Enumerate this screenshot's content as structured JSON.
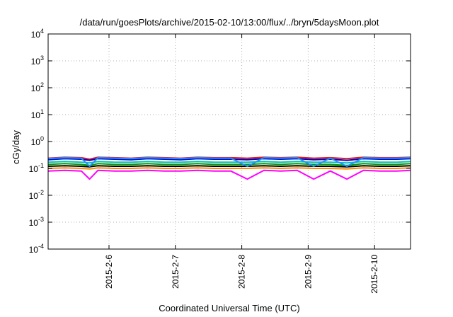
{
  "chart_data": {
    "type": "line",
    "title": "/data/run/goesPlots/archive/2015-02-10/13:00/flux/../bryn/5daysMoon.plot",
    "xlabel": "Coordinated Universal Time (UTC)",
    "ylabel": "cGy/day",
    "yscale": "log",
    "ylim": [
      0.0001,
      10000
    ],
    "xlim": [
      "2015-02-05T02:00",
      "2015-02-10T13:00"
    ],
    "grid": true,
    "y_ticks": [
      {
        "base": "10",
        "exp": "-4",
        "value": 0.0001
      },
      {
        "base": "10",
        "exp": "-3",
        "value": 0.001
      },
      {
        "base": "10",
        "exp": "-2",
        "value": 0.01
      },
      {
        "base": "10",
        "exp": "-1",
        "value": 0.1
      },
      {
        "base": "10",
        "exp": "0",
        "value": 1
      },
      {
        "base": "10",
        "exp": "1",
        "value": 10
      },
      {
        "base": "10",
        "exp": "2",
        "value": 100
      },
      {
        "base": "10",
        "exp": "3",
        "value": 1000
      },
      {
        "base": "10",
        "exp": "4",
        "value": 10000
      }
    ],
    "x_ticks": [
      {
        "label": "2015-2-6",
        "value": "2015-02-06T00:00"
      },
      {
        "label": "2015-2-7",
        "value": "2015-02-07T00:00"
      },
      {
        "label": "2015-2-8",
        "value": "2015-02-08T00:00"
      },
      {
        "label": "2015-2-9",
        "value": "2015-02-09T00:00"
      },
      {
        "label": "2015-2-10",
        "value": "2015-02-10T00:00"
      }
    ],
    "x": [
      "2015-02-05T02:00",
      "2015-02-05T08:00",
      "2015-02-05T14:00",
      "2015-02-05T17:00",
      "2015-02-05T20:00",
      "2015-02-06T02:00",
      "2015-02-06T08:00",
      "2015-02-06T14:00",
      "2015-02-06T20:00",
      "2015-02-07T02:00",
      "2015-02-07T08:00",
      "2015-02-07T14:00",
      "2015-02-07T20:00",
      "2015-02-08T02:00",
      "2015-02-08T08:00",
      "2015-02-08T14:00",
      "2015-02-08T20:00",
      "2015-02-09T02:00",
      "2015-02-09T08:00",
      "2015-02-09T14:00",
      "2015-02-09T20:00",
      "2015-02-10T02:00",
      "2015-02-10T08:00",
      "2015-02-10T13:00"
    ],
    "series": [
      {
        "color": "#e41a1c",
        "values": [
          0.24,
          0.26,
          0.25,
          0.22,
          0.26,
          0.25,
          0.24,
          0.26,
          0.25,
          0.24,
          0.26,
          0.25,
          0.25,
          0.24,
          0.26,
          0.25,
          0.26,
          0.24,
          0.25,
          0.23,
          0.26,
          0.25,
          0.25,
          0.26
        ]
      },
      {
        "color": "#0000cc",
        "values": [
          0.21,
          0.23,
          0.22,
          0.2,
          0.23,
          0.22,
          0.21,
          0.23,
          0.22,
          0.21,
          0.23,
          0.22,
          0.22,
          0.21,
          0.23,
          0.22,
          0.23,
          0.21,
          0.22,
          0.2,
          0.23,
          0.22,
          0.22,
          0.23
        ]
      },
      {
        "color": "#00bfbf",
        "values": [
          0.17,
          0.18,
          0.17,
          0.16,
          0.18,
          0.17,
          0.17,
          0.18,
          0.17,
          0.17,
          0.18,
          0.17,
          0.17,
          0.17,
          0.18,
          0.17,
          0.18,
          0.17,
          0.17,
          0.16,
          0.18,
          0.17,
          0.17,
          0.18
        ]
      },
      {
        "color": "#00a000",
        "values": [
          0.14,
          0.15,
          0.14,
          0.13,
          0.15,
          0.14,
          0.14,
          0.15,
          0.14,
          0.14,
          0.15,
          0.14,
          0.14,
          0.14,
          0.15,
          0.14,
          0.15,
          0.14,
          0.14,
          0.13,
          0.15,
          0.14,
          0.14,
          0.15
        ]
      },
      {
        "color": "#000000",
        "values": [
          0.12,
          0.125,
          0.12,
          0.115,
          0.125,
          0.12,
          0.12,
          0.125,
          0.12,
          0.12,
          0.125,
          0.12,
          0.12,
          0.12,
          0.125,
          0.12,
          0.125,
          0.12,
          0.12,
          0.115,
          0.125,
          0.12,
          0.12,
          0.125
        ]
      },
      {
        "color": "#ff8c00",
        "values": [
          0.1,
          0.105,
          0.1,
          0.095,
          0.105,
          0.1,
          0.1,
          0.105,
          0.1,
          0.1,
          0.105,
          0.1,
          0.1,
          0.1,
          0.105,
          0.1,
          0.105,
          0.1,
          0.1,
          0.095,
          0.105,
          0.1,
          0.1,
          0.105
        ]
      },
      {
        "color": "#ff00ff",
        "values": [
          0.08,
          0.085,
          0.08,
          0.04,
          0.085,
          0.08,
          0.08,
          0.085,
          0.08,
          0.08,
          0.085,
          0.08,
          0.08,
          0.04,
          0.085,
          0.08,
          0.085,
          0.04,
          0.08,
          0.04,
          0.085,
          0.08,
          0.08,
          0.085
        ]
      },
      {
        "color": "#1e90ff",
        "values": [
          0.23,
          0.25,
          0.24,
          0.12,
          0.25,
          0.24,
          0.23,
          0.25,
          0.24,
          0.23,
          0.25,
          0.24,
          0.24,
          0.12,
          0.25,
          0.24,
          0.25,
          0.12,
          0.24,
          0.12,
          0.25,
          0.24,
          0.24,
          0.25
        ]
      }
    ]
  }
}
